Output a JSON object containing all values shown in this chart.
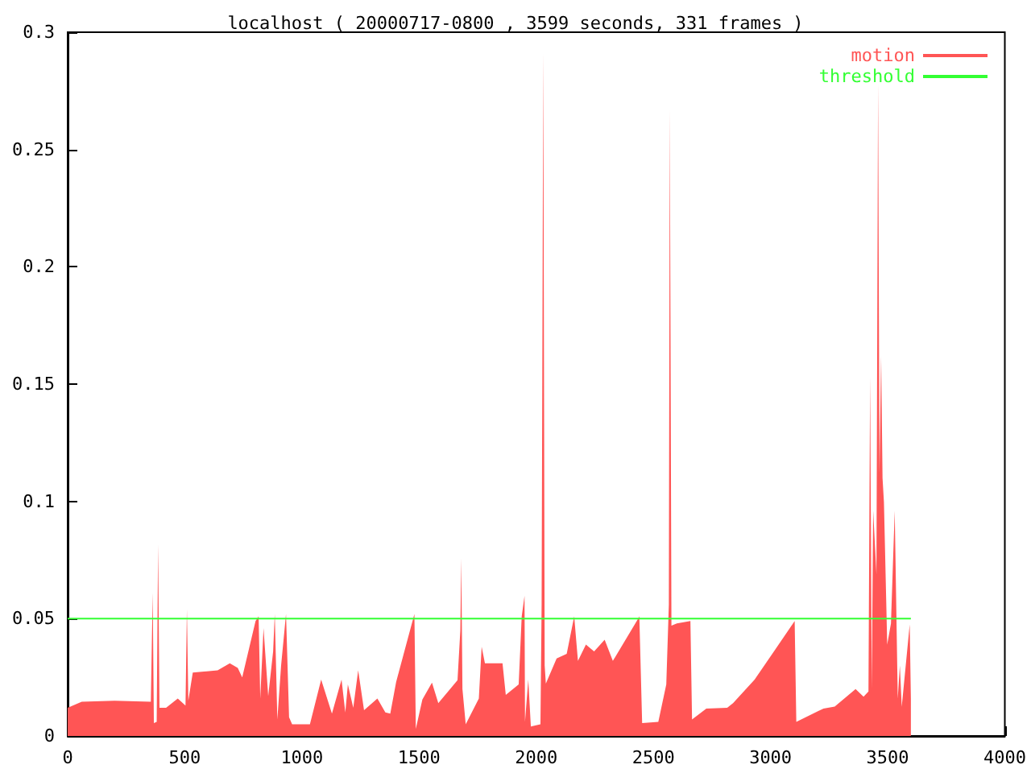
{
  "chart_data": {
    "type": "area",
    "title": "localhost ( 20000717-0800 , 3599 seconds, 331 frames )",
    "xlim": [
      0,
      4000
    ],
    "xticks": [
      0,
      500,
      1000,
      1500,
      2000,
      2500,
      3000,
      3500,
      4000
    ],
    "ylim": [
      0,
      0.3
    ],
    "yticks": [
      0,
      0.05,
      0.1,
      0.15,
      0.2,
      0.25,
      0.3
    ],
    "grid": false,
    "legend": "top right",
    "marker": "none",
    "series": [
      {
        "name": "motion",
        "color": "#ff5555",
        "x": [
          0,
          60,
          200,
          355,
          363,
          368,
          380,
          386,
          392,
          420,
          470,
          503,
          509,
          515,
          534,
          640,
          692,
          726,
          745,
          802,
          815,
          822,
          836,
          856,
          877,
          884,
          895,
          911,
          932,
          945,
          958,
          1034,
          1082,
          1128,
          1169,
          1185,
          1196,
          1219,
          1240,
          1265,
          1322,
          1356,
          1377,
          1402,
          1480,
          1486,
          1514,
          1555,
          1582,
          1664,
          1676,
          1680,
          1685,
          1699,
          1755,
          1767,
          1781,
          1856,
          1870,
          1925,
          1938,
          1950,
          1952,
          1966,
          1977,
          2018,
          2023,
          2030,
          2036,
          2041,
          2087,
          2130,
          2162,
          2178,
          2212,
          2247,
          2292,
          2327,
          2429,
          2440,
          2452,
          2521,
          2555,
          2566,
          2570,
          2577,
          2600,
          2658,
          2665,
          2726,
          2815,
          2840,
          2932,
          3021,
          3103,
          3110,
          3226,
          3274,
          3363,
          3397,
          3418,
          3425,
          3432,
          3438,
          3452,
          3459,
          3465,
          3472,
          3478,
          3484,
          3498,
          3514,
          3530,
          3543,
          3552,
          3560,
          3594,
          3599
        ],
        "values": [
          0.012,
          0.0146,
          0.015,
          0.0146,
          0.061,
          0.0055,
          0.006,
          0.0816,
          0.012,
          0.012,
          0.016,
          0.013,
          0.054,
          0.015,
          0.027,
          0.028,
          0.031,
          0.029,
          0.025,
          0.049,
          0.051,
          0.016,
          0.046,
          0.017,
          0.036,
          0.052,
          0.007,
          0.03,
          0.052,
          0.008,
          0.005,
          0.005,
          0.024,
          0.0095,
          0.024,
          0.01,
          0.022,
          0.012,
          0.028,
          0.011,
          0.016,
          0.01,
          0.0095,
          0.023,
          0.052,
          0.003,
          0.0155,
          0.0227,
          0.014,
          0.0238,
          0.045,
          0.0757,
          0.02,
          0.005,
          0.016,
          0.038,
          0.031,
          0.031,
          0.0175,
          0.022,
          0.051,
          0.0597,
          0.006,
          0.024,
          0.004,
          0.005,
          0.0564,
          0.291,
          0.03,
          0.0223,
          0.033,
          0.035,
          0.051,
          0.032,
          0.039,
          0.036,
          0.041,
          0.032,
          0.049,
          0.051,
          0.0055,
          0.006,
          0.022,
          0.056,
          0.267,
          0.047,
          0.048,
          0.049,
          0.007,
          0.0117,
          0.012,
          0.014,
          0.024,
          0.037,
          0.049,
          0.006,
          0.0117,
          0.0125,
          0.02,
          0.0167,
          0.019,
          0.153,
          0.02,
          0.096,
          0.069,
          0.278,
          0.112,
          0.162,
          0.11,
          0.0997,
          0.039,
          0.048,
          0.096,
          0.016,
          0.03,
          0.0124,
          0.0475,
          0.016
        ]
      },
      {
        "name": "threshold",
        "type": "line",
        "color": "#33ff33",
        "x": [
          0,
          3599
        ],
        "values": [
          0.05,
          0.05
        ]
      }
    ]
  }
}
